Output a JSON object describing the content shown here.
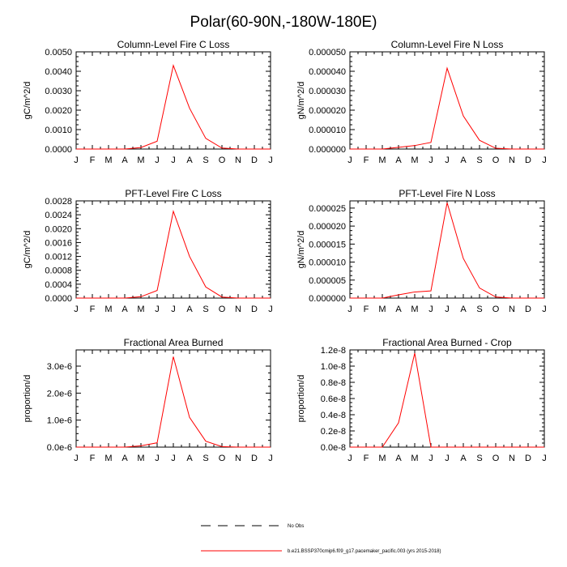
{
  "title": "Polar(60-90N,-180W-180E)",
  "months": [
    "J",
    "F",
    "M",
    "A",
    "M",
    "J",
    "J",
    "A",
    "S",
    "O",
    "N",
    "D",
    "J"
  ],
  "colors": {
    "model": "#ff0000",
    "obs": "#000000",
    "axis": "#000000"
  },
  "legend": {
    "obs_label": "No Obs",
    "model_label": "b.e21.BSSP370cmip6.f09_g17.pacemaker_pacific.003 (yrs 2015-2018)"
  },
  "chart_data": [
    {
      "type": "line",
      "title": "Column-Level Fire C Loss",
      "ylabel": "gC/m^2/d",
      "ylim": [
        0,
        0.005
      ],
      "yticks": [
        0,
        0.001,
        0.002,
        0.003,
        0.004,
        0.005
      ],
      "ytick_labels": [
        "0.0000",
        "0.0010",
        "0.0020",
        "0.0030",
        "0.0040",
        "0.0050"
      ],
      "x": [
        1,
        2,
        3,
        4,
        5,
        6,
        7,
        8,
        9,
        10,
        11,
        12,
        13
      ],
      "series": [
        {
          "name": "model",
          "values": [
            0,
            0,
            0,
            0,
            8e-05,
            0.0004,
            0.0043,
            0.0021,
            0.00055,
            5e-05,
            0,
            0,
            0
          ]
        }
      ]
    },
    {
      "type": "line",
      "title": "Column-Level Fire N Loss",
      "ylabel": "gN/m^2/d",
      "ylim": [
        0,
        5e-05
      ],
      "yticks": [
        0,
        1e-05,
        2e-05,
        3e-05,
        4e-05,
        5e-05
      ],
      "ytick_labels": [
        "0.000000",
        "0.000010",
        "0.000020",
        "0.000030",
        "0.000040",
        "0.000050"
      ],
      "x": [
        1,
        2,
        3,
        4,
        5,
        6,
        7,
        8,
        9,
        10,
        11,
        12,
        13
      ],
      "series": [
        {
          "name": "model",
          "values": [
            0,
            0,
            0,
            9e-07,
            1.8e-06,
            3.4e-06,
            4.16e-05,
            1.7e-05,
            4.5e-06,
            4e-07,
            0,
            0,
            0
          ]
        }
      ]
    },
    {
      "type": "line",
      "title": "PFT-Level Fire C Loss",
      "ylabel": "gC/m^2/d",
      "ylim": [
        0,
        0.0028
      ],
      "yticks": [
        0,
        0.0004,
        0.0008,
        0.0012,
        0.0016,
        0.002,
        0.0024,
        0.0028
      ],
      "ytick_labels": [
        "0.0000",
        "0.0004",
        "0.0008",
        "0.0012",
        "0.0016",
        "0.0020",
        "0.0024",
        "0.0028"
      ],
      "x": [
        1,
        2,
        3,
        4,
        5,
        6,
        7,
        8,
        9,
        10,
        11,
        12,
        13
      ],
      "series": [
        {
          "name": "model",
          "values": [
            0,
            0,
            0,
            0,
            4e-05,
            0.00022,
            0.0025,
            0.0012,
            0.00032,
            3e-05,
            0,
            0,
            0
          ]
        }
      ]
    },
    {
      "type": "line",
      "title": "PFT-Level Fire N Loss",
      "ylabel": "gN/m^2/d",
      "ylim": [
        0,
        2.7e-05
      ],
      "yticks": [
        0,
        5e-06,
        1e-05,
        1.5e-05,
        2e-05,
        2.5e-05
      ],
      "ytick_labels": [
        "0.000000",
        "0.000005",
        "0.000010",
        "0.000015",
        "0.000020",
        "0.000025"
      ],
      "x": [
        1,
        2,
        3,
        4,
        5,
        6,
        7,
        8,
        9,
        10,
        11,
        12,
        13
      ],
      "series": [
        {
          "name": "model",
          "values": [
            0,
            0,
            0,
            9e-07,
            1.7e-06,
            2e-06,
            2.65e-05,
            1.1e-05,
            2.8e-06,
            3e-07,
            0,
            0,
            0
          ]
        }
      ]
    },
    {
      "type": "line",
      "title": "Fractional Area Burned",
      "ylabel": "proportion/d",
      "ylim": [
        0,
        3.6e-06
      ],
      "yticks": [
        0,
        1e-06,
        2e-06,
        3e-06
      ],
      "ytick_labels": [
        "0.0e-6",
        "1.0e-6",
        "2.0e-6",
        "3.0e-6"
      ],
      "x": [
        1,
        2,
        3,
        4,
        5,
        6,
        7,
        8,
        9,
        10,
        11,
        12,
        13
      ],
      "series": [
        {
          "name": "model",
          "values": [
            0,
            0,
            0,
            0,
            5e-08,
            1.6e-07,
            3.35e-06,
            1.1e-06,
            2.2e-07,
            2e-08,
            0,
            0,
            0
          ]
        }
      ]
    },
    {
      "type": "line",
      "title": "Fractional Area Burned - Crop",
      "ylabel": "proportion/d",
      "ylim": [
        0,
        1.2e-08
      ],
      "yticks": [
        0,
        2e-09,
        4e-09,
        6e-09,
        8e-09,
        1e-08,
        1.2e-08
      ],
      "ytick_labels": [
        "0.0e-8",
        "0.2e-8",
        "0.4e-8",
        "0.6e-8",
        "0.8e-8",
        "1.0e-8",
        "1.2e-8"
      ],
      "x": [
        1,
        2,
        3,
        4,
        5,
        6,
        7,
        8,
        9,
        10,
        11,
        12,
        13
      ],
      "series": [
        {
          "name": "model",
          "values": [
            0,
            0,
            0,
            3e-09,
            1.16e-08,
            0,
            0,
            0,
            0,
            0,
            0,
            0,
            0
          ]
        }
      ]
    }
  ]
}
